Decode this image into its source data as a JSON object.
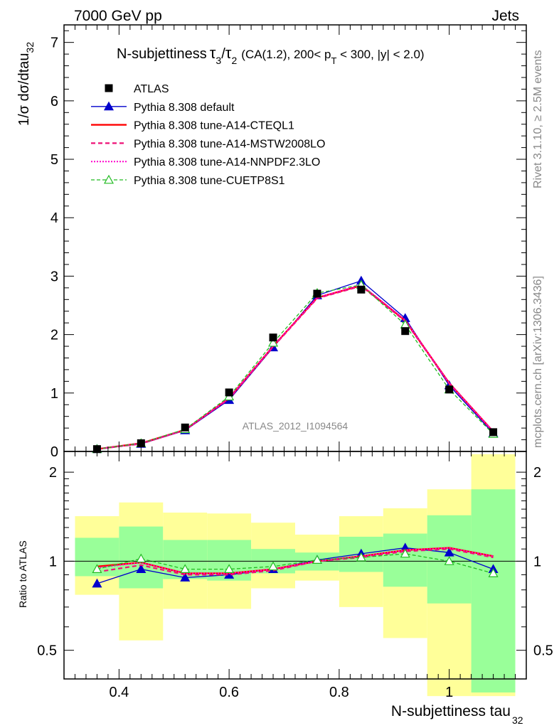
{
  "header": {
    "left": "7000 GeV pp",
    "right": "Jets"
  },
  "title": {
    "main": "N-subjettiness",
    "tau_a": "τ",
    "sub_a": "3",
    "slash": "/",
    "tau_b": "τ",
    "sub_b": "2",
    "cut_pre": "(CA(1.2), 200< p",
    "cut_sub": "T",
    "cut_post": " < 300, |y| < 2.0)"
  },
  "side_labels": {
    "rivet": "Rivet 3.1.10, ≥ 2.5M events",
    "mcplots": "mcplots.cern.ch [arXiv:1306.3436]"
  },
  "analysis_id": "ATLAS_2012_I1094564",
  "xlabel": {
    "text": "N-subjettiness tau",
    "sub": "32"
  },
  "ylabel_main": {
    "text": "1/σ dσ/dtau",
    "sub": "32"
  },
  "ylabel_ratio": "Ratio to ATLAS",
  "colors": {
    "data": "#000000",
    "default": "#0000cc",
    "cteql1": "#ff0000",
    "mstw": "#ee1177",
    "nnpdf": "#ff00cc",
    "cuetp8s1": "#22bb22",
    "band_inner": "#99ff99",
    "band_outer": "#ffff99"
  },
  "chart_data": [
    {
      "type": "line",
      "xlim": [
        0.3,
        1.14
      ],
      "ylim": [
        0,
        7.3
      ],
      "x_ticks": [
        "0.4",
        "0.6",
        "0.8",
        "1"
      ],
      "y_ticks": [
        "0",
        "1",
        "2",
        "3",
        "4",
        "5",
        "6",
        "7"
      ],
      "x": [
        0.36,
        0.44,
        0.52,
        0.6,
        0.68,
        0.76,
        0.84,
        0.92,
        1.0,
        1.08
      ],
      "bin_edges": [
        0.32,
        0.4,
        0.48,
        0.56,
        0.64,
        0.72,
        0.8,
        0.88,
        0.96,
        1.04,
        1.12
      ],
      "legend_position": "top-left",
      "series": [
        {
          "name": "ATLAS",
          "style": "data",
          "values": [
            0.04,
            0.14,
            0.41,
            1.01,
            1.95,
            2.7,
            2.77,
            2.06,
            1.06,
            0.33
          ]
        },
        {
          "name": "Pythia 8.308 default",
          "style": "default",
          "values": [
            0.04,
            0.13,
            0.36,
            0.88,
            1.78,
            2.67,
            2.92,
            2.28,
            1.13,
            0.31
          ]
        },
        {
          "name": "Pythia 8.308 tune-A14-CTEQL1",
          "style": "cteql1",
          "values": [
            0.04,
            0.14,
            0.37,
            0.91,
            1.8,
            2.63,
            2.84,
            2.24,
            1.17,
            0.34
          ]
        },
        {
          "name": "Pythia 8.308 tune-A14-MSTW2008LO",
          "style": "mstw",
          "values": [
            0.04,
            0.13,
            0.37,
            0.9,
            1.79,
            2.62,
            2.83,
            2.23,
            1.16,
            0.34
          ]
        },
        {
          "name": "Pythia 8.308 tune-A14-NNPDF2.3LO",
          "style": "nnpdf",
          "values": [
            0.04,
            0.14,
            0.37,
            0.91,
            1.8,
            2.63,
            2.85,
            2.25,
            1.17,
            0.34
          ]
        },
        {
          "name": "Pythia 8.308 tune-CUETP8S1",
          "style": "cuetp8s1",
          "values": [
            0.04,
            0.14,
            0.38,
            0.94,
            1.86,
            2.71,
            2.85,
            2.17,
            1.06,
            0.3
          ]
        }
      ]
    },
    {
      "type": "line",
      "ylim": [
        0.4,
        2.35
      ],
      "log_y": true,
      "y_ticks": [
        "0.5",
        "1",
        "2"
      ],
      "band_inner": [
        [
          0.89,
          1.2
        ],
        [
          0.81,
          1.31
        ],
        [
          0.87,
          1.18
        ],
        [
          0.86,
          1.18
        ],
        [
          0.91,
          1.1
        ],
        [
          0.93,
          1.07
        ],
        [
          0.92,
          1.21
        ],
        [
          0.82,
          1.24
        ],
        [
          0.72,
          1.43
        ],
        [
          0.36,
          1.75
        ]
      ],
      "band_outer": [
        [
          0.77,
          1.42
        ],
        [
          0.54,
          1.58
        ],
        [
          0.69,
          1.46
        ],
        [
          0.69,
          1.45
        ],
        [
          0.81,
          1.35
        ],
        [
          0.86,
          1.23
        ],
        [
          0.7,
          1.42
        ],
        [
          0.55,
          1.51
        ],
        [
          0.35,
          1.75
        ],
        [
          0.35,
          2.3
        ]
      ],
      "series": [
        {
          "name": "Pythia 8.308 default",
          "style": "default",
          "values": [
            0.84,
            0.94,
            0.88,
            0.9,
            0.94,
            1.01,
            1.06,
            1.11,
            1.07,
            0.94
          ]
        },
        {
          "name": "Pythia 8.308 tune-A14-CTEQL1",
          "style": "cteql1",
          "values": [
            0.96,
            0.99,
            0.91,
            0.91,
            0.94,
            1.0,
            1.04,
            1.09,
            1.11,
            1.04
          ]
        },
        {
          "name": "Pythia 8.308 tune-A14-MSTW2008LO",
          "style": "mstw",
          "values": [
            0.92,
            0.97,
            0.9,
            0.9,
            0.93,
            1.0,
            1.03,
            1.08,
            1.1,
            1.03
          ]
        },
        {
          "name": "Pythia 8.308 tune-A14-NNPDF2.3LO",
          "style": "nnpdf",
          "values": [
            0.95,
            0.99,
            0.91,
            0.91,
            0.94,
            1.0,
            1.04,
            1.09,
            1.11,
            1.04
          ]
        },
        {
          "name": "Pythia 8.308 tune-CUETP8S1",
          "style": "cuetp8s1",
          "values": [
            0.94,
            1.02,
            0.94,
            0.94,
            0.96,
            1.01,
            1.03,
            1.06,
            1.0,
            0.91
          ]
        }
      ]
    }
  ]
}
